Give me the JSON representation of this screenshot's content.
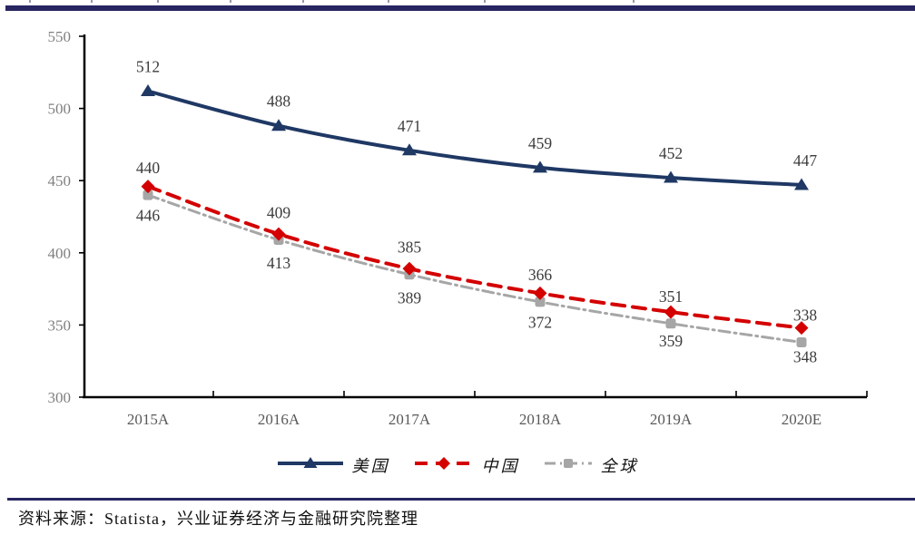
{
  "colors": {
    "accent_bar": "#282561",
    "axis": "#000000",
    "axis_tick_label": "#7f7f7f",
    "x_tick_label": "#595959",
    "data_label": "#3c3c3c",
    "us_navy": "#1F3864",
    "cn_red": "#D40000",
    "global_gray": "#A6A6A6"
  },
  "chart_data": {
    "type": "line",
    "title": "",
    "xlabel": "",
    "ylabel": "",
    "categories": [
      "2015A",
      "2016A",
      "2017A",
      "2018A",
      "2019A",
      "2020E"
    ],
    "series": [
      {
        "id": "us",
        "name": "美国",
        "values": [
          512,
          488,
          471,
          459,
          452,
          447
        ],
        "color": "#1F3864",
        "marker": "triangle",
        "line_style": "solid",
        "stroke_width": 4,
        "label_position": "above",
        "label_dy": -21
      },
      {
        "id": "cn",
        "name": "中国",
        "values": [
          446,
          413,
          389,
          372,
          359,
          348
        ],
        "color": "#D40000",
        "marker": "diamond",
        "line_style": "dashed",
        "stroke_width": 4,
        "label_position": "below",
        "label_dy": 38
      },
      {
        "id": "global",
        "name": "全球",
        "values": [
          440,
          409,
          385,
          366,
          351,
          338
        ],
        "color": "#A6A6A6",
        "marker": "square",
        "line_style": "dash-dot",
        "stroke_width": 3,
        "label_position": "above",
        "label_dy": -24
      }
    ],
    "ylim": [
      300,
      550
    ],
    "ytick_step": 50,
    "yticks": [
      550,
      500,
      450,
      400,
      350,
      300
    ],
    "grid": false,
    "legend_position": "bottom"
  },
  "footer": {
    "source_text": "资料来源：Statista，兴业证券经济与金融研究院整理"
  }
}
